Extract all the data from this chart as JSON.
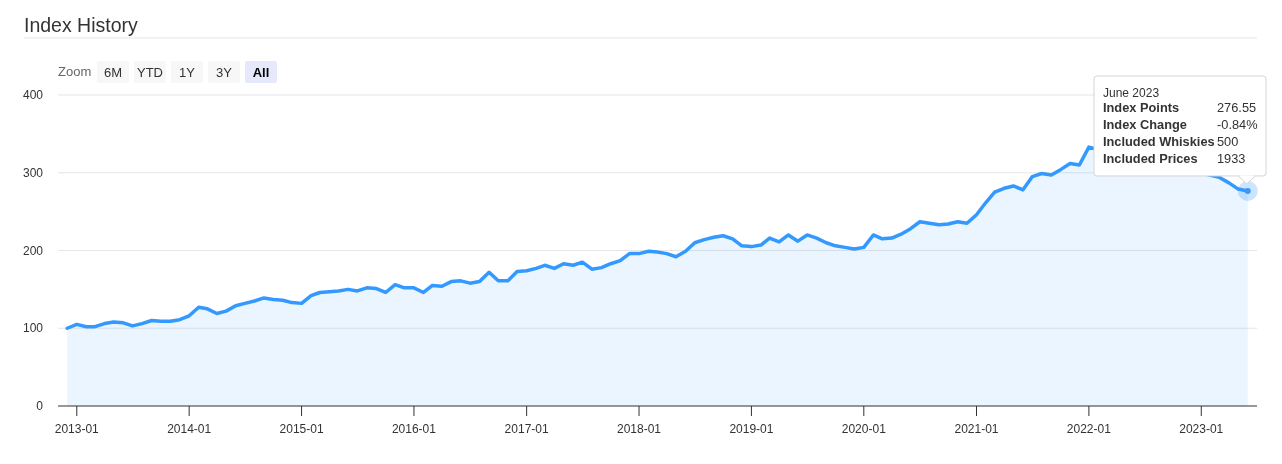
{
  "chart_data": {
    "type": "area",
    "title": "Index History",
    "x": [
      "2012-12",
      "2013-01",
      "2013-02",
      "2013-03",
      "2013-04",
      "2013-05",
      "2013-06",
      "2013-07",
      "2013-08",
      "2013-09",
      "2013-10",
      "2013-11",
      "2013-12",
      "2014-01",
      "2014-02",
      "2014-03",
      "2014-04",
      "2014-05",
      "2014-06",
      "2014-07",
      "2014-08",
      "2014-09",
      "2014-10",
      "2014-11",
      "2014-12",
      "2015-01",
      "2015-02",
      "2015-03",
      "2015-04",
      "2015-05",
      "2015-06",
      "2015-07",
      "2015-08",
      "2015-09",
      "2015-10",
      "2015-11",
      "2015-12",
      "2016-01",
      "2016-02",
      "2016-03",
      "2016-04",
      "2016-05",
      "2016-06",
      "2016-07",
      "2016-08",
      "2016-09",
      "2016-10",
      "2016-11",
      "2016-12",
      "2017-01",
      "2017-02",
      "2017-03",
      "2017-04",
      "2017-05",
      "2017-06",
      "2017-07",
      "2017-08",
      "2017-09",
      "2017-10",
      "2017-11",
      "2017-12",
      "2018-01",
      "2018-02",
      "2018-03",
      "2018-04",
      "2018-05",
      "2018-06",
      "2018-07",
      "2018-08",
      "2018-09",
      "2018-10",
      "2018-11",
      "2018-12",
      "2019-01",
      "2019-02",
      "2019-03",
      "2019-04",
      "2019-05",
      "2019-06",
      "2019-07",
      "2019-08",
      "2019-09",
      "2019-10",
      "2019-11",
      "2019-12",
      "2020-01",
      "2020-02",
      "2020-03",
      "2020-04",
      "2020-05",
      "2020-06",
      "2020-07",
      "2020-08",
      "2020-09",
      "2020-10",
      "2020-11",
      "2020-12",
      "2021-01",
      "2021-02",
      "2021-03",
      "2021-04",
      "2021-05",
      "2021-06",
      "2021-07",
      "2021-08",
      "2021-09",
      "2021-10",
      "2021-11",
      "2021-12",
      "2022-01",
      "2022-02",
      "2022-03",
      "2022-04",
      "2022-05",
      "2022-06",
      "2022-07",
      "2022-08",
      "2022-09",
      "2022-10",
      "2022-11",
      "2022-12",
      "2023-01",
      "2023-02",
      "2023-03",
      "2023-04",
      "2023-05",
      "2023-06"
    ],
    "series": [
      {
        "color": "#3399ff",
        "values": [
          100,
          105,
          102,
          102,
          106,
          108,
          107,
          103,
          106,
          110,
          109,
          109,
          111,
          116,
          127,
          125,
          119,
          122,
          129,
          132,
          135,
          139,
          137,
          136,
          133,
          132,
          142,
          146,
          147,
          148,
          150,
          148,
          152,
          151,
          146,
          156,
          152,
          152,
          146,
          155,
          154,
          160,
          161,
          158,
          160,
          172,
          161,
          161,
          173,
          174,
          177,
          181,
          177,
          183,
          181,
          185,
          176,
          178,
          183,
          187,
          196,
          196,
          199,
          198,
          196,
          192,
          199,
          210,
          214,
          217,
          219,
          215,
          206,
          205,
          207,
          216,
          211,
          220,
          212,
          220,
          216,
          210,
          206,
          204,
          202,
          204,
          220,
          215,
          216,
          221,
          228,
          237,
          235,
          233,
          234,
          237,
          235,
          246,
          262,
          275,
          280,
          283,
          278,
          295,
          299,
          297,
          304,
          312,
          310,
          333,
          null,
          null,
          null,
          null,
          null,
          null,
          null,
          null,
          null,
          null,
          null,
          null,
          null,
          294,
          287,
          279,
          276.55
        ]
      }
    ],
    "xlim": [
      "2012-11",
      "2023-07"
    ],
    "xticks": [
      "2013-01",
      "2014-01",
      "2015-01",
      "2016-01",
      "2017-01",
      "2018-01",
      "2019-01",
      "2020-01",
      "2021-01",
      "2022-01",
      "2023-01"
    ],
    "ylim": [
      0,
      400
    ],
    "yticks": [
      0,
      100,
      200,
      300,
      400
    ],
    "grid": "y",
    "annotations": [
      "Zoom",
      "6M",
      "YTD",
      "1Y",
      "3Y",
      "All",
      "June 2023",
      "Index Points 276.55",
      "Index Change -0.84%",
      "Included Whiskies 500",
      "Included Prices 1933"
    ]
  }
}
